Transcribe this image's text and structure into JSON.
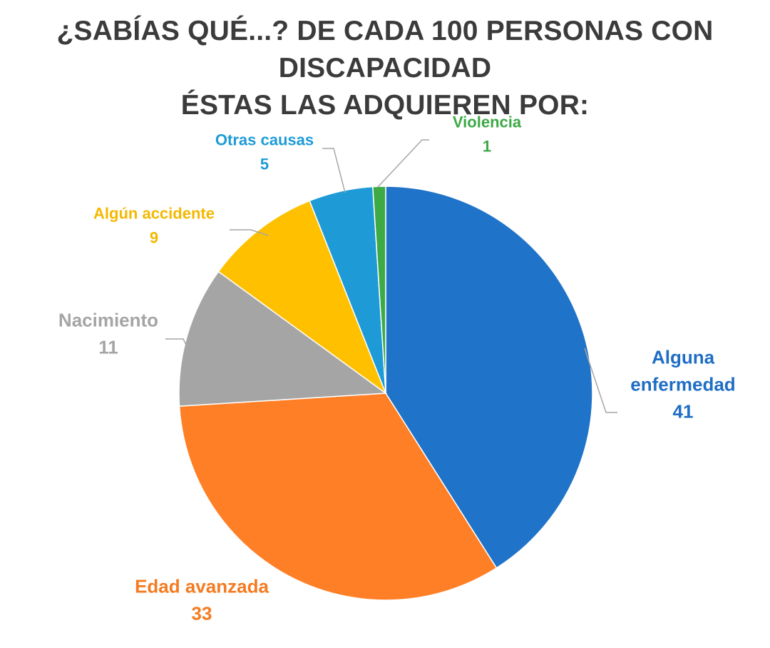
{
  "title": {
    "line1": "¿SABÍAS QUÉ...? DE CADA 100 PERSONAS CON DISCAPACIDAD",
    "line2": "ÉSTAS LAS ADQUIEREN POR:"
  },
  "chart_data": {
    "type": "pie",
    "title": "¿SABÍAS QUÉ...? DE CADA 100 PERSONAS CON DISCAPACIDAD ÉSTAS LAS ADQUIEREN POR:",
    "start_angle_deg": 0,
    "direction": "clockwise",
    "slices": [
      {
        "label": "Alguna enfermedad",
        "label_lines": [
          "Alguna",
          "enfermedad"
        ],
        "value": 41,
        "color": "#1F73C8"
      },
      {
        "label": "Edad avanzada",
        "label_lines": [
          "Edad avanzada"
        ],
        "value": 33,
        "color": "#FF7F27"
      },
      {
        "label": "Nacimiento",
        "label_lines": [
          "Nacimiento"
        ],
        "value": 11,
        "color": "#A5A5A5"
      },
      {
        "label": "Algún accidente",
        "label_lines": [
          "Algún accidente"
        ],
        "value": 9,
        "color": "#FFC000"
      },
      {
        "label": "Otras causas",
        "label_lines": [
          "Otras causas"
        ],
        "value": 5,
        "color": "#1E9BD7"
      },
      {
        "label": "Violencia",
        "label_lines": [
          "Violencia"
        ],
        "value": 1,
        "color": "#3DAA46"
      }
    ],
    "label_colors": {
      "Alguna enfermedad": "#1F6EC4",
      "Edad avanzada": "#F47B20",
      "Nacimiento": "#A5A5A5",
      "Algún accidente": "#F5B800",
      "Otras causas": "#1E9BD7",
      "Violencia": "#3DAA46"
    },
    "leader_line_color": "#A6A6A6"
  }
}
